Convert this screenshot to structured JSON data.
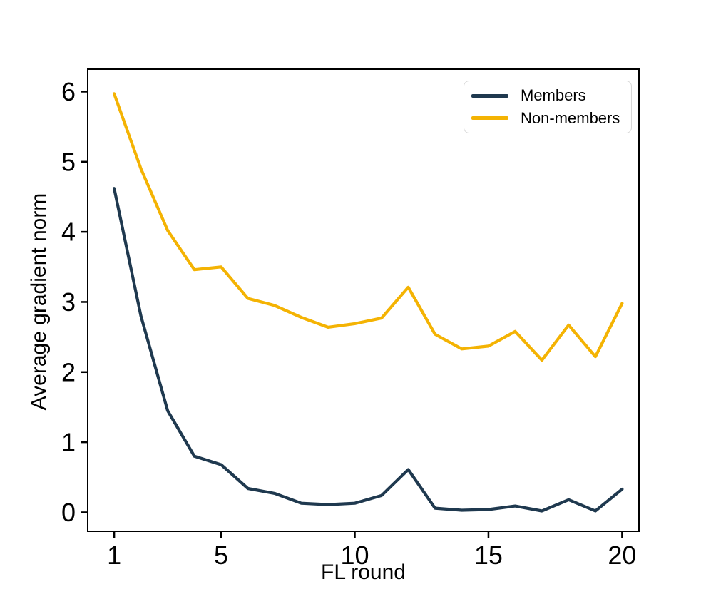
{
  "chart_data": {
    "type": "line",
    "title": "",
    "xlabel": "FL round",
    "ylabel": "Average gradient norm",
    "x": [
      1,
      2,
      3,
      4,
      5,
      6,
      7,
      8,
      9,
      10,
      11,
      12,
      13,
      14,
      15,
      16,
      17,
      18,
      19,
      20
    ],
    "series": [
      {
        "name": "Members",
        "color": "#1f394f",
        "values": [
          4.62,
          2.8,
          1.45,
          0.8,
          0.68,
          0.34,
          0.27,
          0.13,
          0.11,
          0.13,
          0.24,
          0.61,
          0.06,
          0.03,
          0.04,
          0.09,
          0.02,
          0.18,
          0.02,
          0.33
        ]
      },
      {
        "name": "Non-members",
        "color": "#f4b303",
        "values": [
          5.97,
          4.9,
          4.02,
          3.46,
          3.5,
          3.05,
          2.95,
          2.78,
          2.64,
          2.69,
          2.77,
          3.21,
          2.54,
          2.33,
          2.37,
          2.58,
          2.17,
          2.67,
          2.22,
          2.98
        ]
      }
    ],
    "xticks": [
      1,
      5,
      10,
      15,
      20
    ],
    "yticks": [
      0,
      1,
      2,
      3,
      4,
      5,
      6
    ],
    "xlim": [
      0.01,
      20.63
    ],
    "ylim": [
      -0.27,
      6.32
    ],
    "grid": false,
    "legend": {
      "position": "upper right",
      "frame": true
    }
  }
}
